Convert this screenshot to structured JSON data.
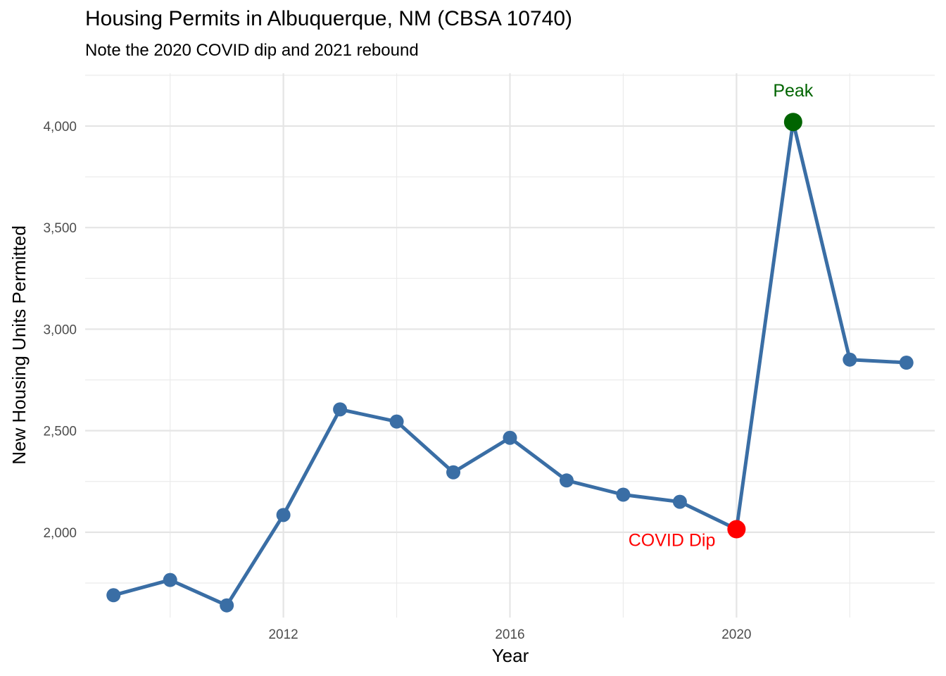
{
  "chart_data": {
    "type": "line",
    "title": "Housing Permits in Albuquerque, NM (CBSA 10740)",
    "subtitle": "Note the 2020 COVID dip and 2021 rebound",
    "xlabel": "Year",
    "ylabel": "New Housing Units Permitted",
    "xlim": [
      2008.5,
      2023.5
    ],
    "ylim": [
      1580,
      4260
    ],
    "x_ticks": [
      2012,
      2016,
      2020
    ],
    "x_tick_labels": [
      "2012",
      "2016",
      "2020"
    ],
    "x_minor_ticks": [
      2010,
      2014,
      2018,
      2022
    ],
    "y_ticks": [
      2000,
      2500,
      3000,
      3500,
      4000
    ],
    "y_tick_labels": [
      "2,000",
      "2,500",
      "3,000",
      "3,500",
      "4,000"
    ],
    "y_minor_ticks": [
      1750,
      2250,
      2750,
      3250,
      3750,
      4250
    ],
    "grid": true,
    "legend": "none",
    "series": [
      {
        "color": "#3a6ea5",
        "x": [
          2009,
          2010,
          2011,
          2012,
          2013,
          2014,
          2015,
          2016,
          2017,
          2018,
          2019,
          2020,
          2021,
          2022,
          2023
        ],
        "y": [
          1690,
          1765,
          1640,
          2085,
          2605,
          2545,
          2295,
          2465,
          2255,
          2185,
          2150,
          2015,
          4020,
          2850,
          2835
        ]
      }
    ],
    "highlights": [
      {
        "label": "COVID Dip",
        "x": 2020,
        "y": 2015,
        "color": "#ff0000"
      },
      {
        "label": "Peak",
        "x": 2021,
        "y": 4020,
        "color": "#006400"
      }
    ]
  }
}
